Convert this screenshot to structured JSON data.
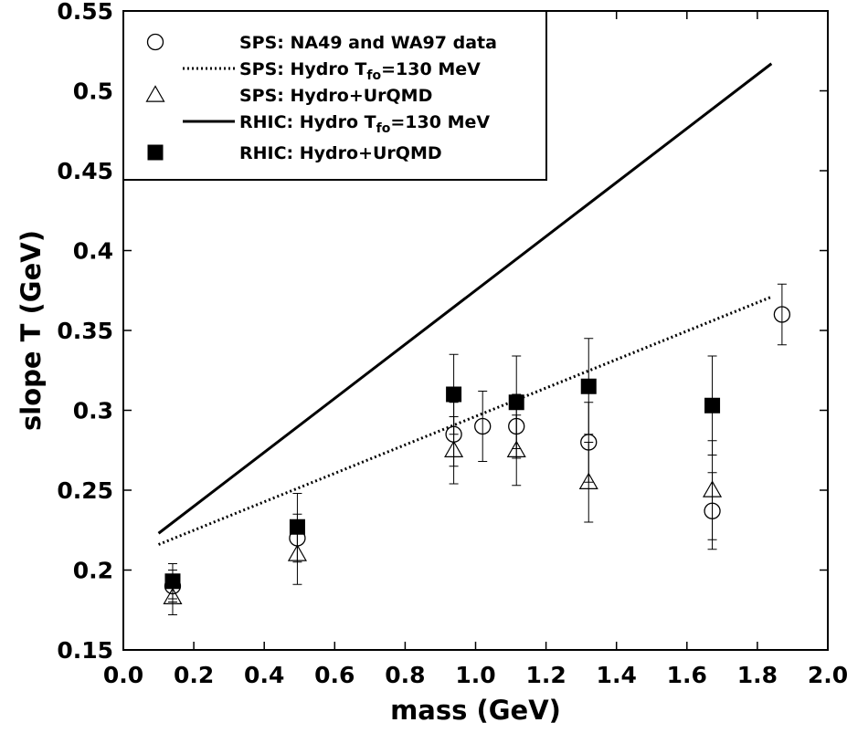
{
  "chart_data": {
    "type": "scatter",
    "xlabel": "mass (GeV)",
    "ylabel": "slope T (GeV)",
    "xlim": [
      0.0,
      2.0
    ],
    "ylim": [
      0.15,
      0.55
    ],
    "x_ticks": [
      "0.0",
      "0.2",
      "0.4",
      "0.6",
      "0.8",
      "1.0",
      "1.2",
      "1.4",
      "1.6",
      "1.8",
      "2.0"
    ],
    "y_ticks": [
      "0.15",
      "0.2",
      "0.25",
      "0.3",
      "0.35",
      "0.4",
      "0.45",
      "0.5",
      "0.55"
    ],
    "legend_position": "top-left",
    "series": [
      {
        "name": "SPS: NA49 and WA97 data",
        "legend_html": "SPS: NA49 and WA97 data",
        "marker": "open-circle",
        "points": [
          {
            "x": 0.14,
            "y": 0.19,
            "err": 0.01
          },
          {
            "x": 0.494,
            "y": 0.22,
            "err": 0.015
          },
          {
            "x": 0.938,
            "y": 0.285,
            "err": 0.02
          },
          {
            "x": 1.02,
            "y": 0.29,
            "err": 0.022
          },
          {
            "x": 1.116,
            "y": 0.29,
            "err": 0.02
          },
          {
            "x": 1.321,
            "y": 0.28,
            "err": 0.025
          },
          {
            "x": 1.672,
            "y": 0.237,
            "err": 0.024
          },
          {
            "x": 1.87,
            "y": 0.36,
            "err": 0.019
          }
        ]
      },
      {
        "name": "SPS: Hydro T_fo=130 MeV",
        "legend_main": "SPS: Hydro T",
        "legend_sub": "fo",
        "legend_rest": "=130 MeV",
        "style": "dotted-line",
        "line": [
          {
            "x": 0.1,
            "y": 0.216
          },
          {
            "x": 1.84,
            "y": 0.371
          }
        ]
      },
      {
        "name": "SPS: Hydro+UrQMD",
        "legend_html": "SPS: Hydro+UrQMD",
        "marker": "open-triangle",
        "points": [
          {
            "x": 0.14,
            "y": 0.183,
            "err": 0.011
          },
          {
            "x": 0.494,
            "y": 0.21,
            "err": 0.019
          },
          {
            "x": 0.938,
            "y": 0.275,
            "err": 0.021
          },
          {
            "x": 1.116,
            "y": 0.275,
            "err": 0.022
          },
          {
            "x": 1.321,
            "y": 0.255,
            "err": 0.025
          },
          {
            "x": 1.672,
            "y": 0.25,
            "err": 0.031
          }
        ]
      },
      {
        "name": "RHIC: Hydro T_fo=130 MeV",
        "legend_main": "RHIC: Hydro T",
        "legend_sub": "fo",
        "legend_rest": "=130 MeV",
        "style": "solid-line",
        "line": [
          {
            "x": 0.1,
            "y": 0.223
          },
          {
            "x": 1.84,
            "y": 0.517
          }
        ]
      },
      {
        "name": "RHIC: Hydro+UrQMD",
        "legend_html": "RHIC: Hydro+UrQMD",
        "marker": "filled-square",
        "points": [
          {
            "x": 0.14,
            "y": 0.193,
            "err": 0.011
          },
          {
            "x": 0.494,
            "y": 0.227,
            "err": 0.021
          },
          {
            "x": 0.938,
            "y": 0.31,
            "err": 0.025
          },
          {
            "x": 1.116,
            "y": 0.305,
            "err": 0.029
          },
          {
            "x": 1.321,
            "y": 0.315,
            "err": 0.03
          },
          {
            "x": 1.672,
            "y": 0.303,
            "err": 0.031
          }
        ]
      }
    ]
  }
}
